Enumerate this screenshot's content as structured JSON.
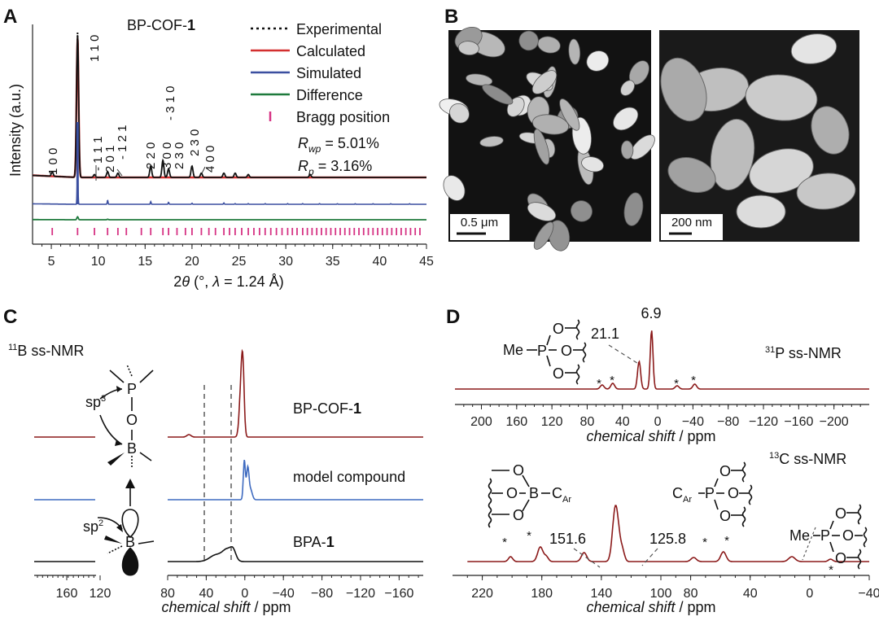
{
  "panels": {
    "a": {
      "letter": "A",
      "title_prefix": "BP-COF-",
      "title_bold": "1",
      "ylabel": "Intensity (a.u.)",
      "xlabel_pre": "2",
      "xlabel_theta": "θ",
      "xlabel_mid": " (°, ",
      "xlabel_lambda": "λ",
      "xlabel_post": " = 1.24 Å)",
      "x_ticks": [
        "5",
        "10",
        "15",
        "20",
        "25",
        "30",
        "35",
        "40",
        "45"
      ],
      "legend": {
        "experimental": "Experimental",
        "calculated": "Calculated",
        "simulated": "Simulated",
        "difference": "Difference",
        "bragg": "Bragg position"
      },
      "rwp_pre": "R",
      "rwp_sub": "wp",
      "rwp_val": " = 5.01%",
      "rp_pre": "R",
      "rp_sub": "p",
      "rp_val": " = 3.16%",
      "reflections": [
        "1 0 0",
        "1 1 0",
        "- 1 1 1",
        "2 0 1",
        "- 1 2 1",
        "2 2 0",
        "3 0 0",
        "- 3 1 0",
        "2 3 0",
        "2 3 0",
        "4 0 0"
      ]
    },
    "b": {
      "letter": "B",
      "scale_left": "0.5 μm",
      "scale_right": "200 nm"
    },
    "c": {
      "letter": "C",
      "nucleus_sup": "11",
      "nucleus_rest": "B ss-NMR",
      "traces": {
        "top_pre": "BP-COF-",
        "top_bold": "1",
        "middle": "model compound",
        "bottom_pre": "BPA-",
        "bottom_bold": "1"
      },
      "sp3_pre": "sp",
      "sp3_sup": "3",
      "sp2_pre": "sp",
      "sp2_sup": "2",
      "atom_P": "P",
      "atom_O": "O",
      "atom_B": "B",
      "x_ticks": [
        "160",
        "120",
        "80",
        "40",
        "0",
        "−40",
        "−80",
        "−120",
        "−160"
      ],
      "xlabel_it": "chemical shift",
      "xlabel_rest": " / ppm"
    },
    "d": {
      "letter": "D",
      "p31_sup": "31",
      "p31_rest": "P ss-NMR",
      "c13_sup": "13",
      "c13_rest": "C ss-NMR",
      "peak_69": "6.9",
      "peak_211": "21.1",
      "peak_1516": "151.6",
      "peak_1258": "125.8",
      "star": "*",
      "me": "Me",
      "car_pre": "C",
      "car_sub": "Ar",
      "p_ticks": [
        "200",
        "160",
        "120",
        "80",
        "40",
        "0",
        "−40",
        "−80",
        "−120",
        "−160",
        "−200"
      ],
      "c_ticks": [
        "220",
        "180",
        "140",
        "100",
        "80",
        "60",
        "40",
        "0",
        "−40"
      ],
      "c_ticks_fixed": [
        "220",
        "180",
        "140",
        "100",
        "80",
        "40",
        "0",
        "−40"
      ],
      "xlabel_it": "chemical shift",
      "xlabel_rest": " / ppm"
    }
  },
  "colors": {
    "experimental": "#111111",
    "calculated": "#d32f2f",
    "simulated": "#3b4fa0",
    "difference": "#1e7a3c",
    "bragg": "#d63384",
    "dark_red": "#8b1a1a",
    "blue": "#3f6bc0",
    "orange": "#f39c12",
    "pink": "#e8319a"
  },
  "chart_data": {
    "type": "line",
    "title": "BP-COF-1",
    "xlabel": "2θ (°, λ = 1.24 Å)",
    "ylabel": "Intensity (a.u.)",
    "xlim": [
      3,
      45
    ],
    "x_ticks": [
      5,
      10,
      15,
      20,
      25,
      30,
      35,
      40,
      45
    ],
    "series": [
      {
        "name": "Experimental",
        "peaks": [
          {
            "x": 5.1,
            "h": 0.03
          },
          {
            "x": 7.8,
            "h": 1.0
          },
          {
            "x": 9.6,
            "h": 0.02
          },
          {
            "x": 11.0,
            "h": 0.04
          },
          {
            "x": 12.1,
            "h": 0.03
          },
          {
            "x": 15.6,
            "h": 0.08
          },
          {
            "x": 16.9,
            "h": 0.12
          },
          {
            "x": 17.5,
            "h": 0.06
          },
          {
            "x": 20.0,
            "h": 0.08
          },
          {
            "x": 21.0,
            "h": 0.03
          },
          {
            "x": 23.4,
            "h": 0.03
          },
          {
            "x": 24.6,
            "h": 0.03
          },
          {
            "x": 26.0,
            "h": 0.02
          },
          {
            "x": 32.6,
            "h": 0.02
          }
        ]
      },
      {
        "name": "Calculated",
        "peaks": [
          {
            "x": 7.8,
            "h": 0.95
          }
        ]
      },
      {
        "name": "Simulated",
        "peaks": [
          {
            "x": 7.8,
            "h": 1.0
          },
          {
            "x": 11.0,
            "h": 0.12
          },
          {
            "x": 15.6,
            "h": 0.08
          },
          {
            "x": 17.5,
            "h": 0.06
          },
          {
            "x": 20.0,
            "h": 0.03
          },
          {
            "x": 23.4,
            "h": 0.04
          },
          {
            "x": 24.6,
            "h": 0.02
          },
          {
            "x": 26.0,
            "h": 0.02
          },
          {
            "x": 27.8,
            "h": 0.02
          },
          {
            "x": 30.2,
            "h": 0.02
          },
          {
            "x": 31.8,
            "h": 0.02
          },
          {
            "x": 33.6,
            "h": 0.02
          },
          {
            "x": 35.5,
            "h": 0.015
          },
          {
            "x": 37.4,
            "h": 0.015
          },
          {
            "x": 39.3,
            "h": 0.015
          },
          {
            "x": 41.2,
            "h": 0.015
          },
          {
            "x": 43.2,
            "h": 0.015
          }
        ]
      },
      {
        "name": "Difference",
        "peaks": [
          {
            "x": 7.8,
            "h": 0.3
          },
          {
            "x": 11.0,
            "h": 0.05
          }
        ]
      },
      {
        "name": "Bragg position",
        "positions": [
          5.1,
          7.8,
          9.6,
          11.0,
          12.1,
          13.0,
          14.6,
          15.6,
          16.9,
          17.5,
          18.4,
          19.3,
          20.0,
          21.0,
          21.8,
          22.5,
          23.4,
          24.0,
          24.6,
          25.3,
          26.0,
          26.6,
          27.2,
          27.8,
          28.4,
          29.0,
          29.6,
          30.2,
          30.7,
          31.2,
          31.8,
          32.3,
          32.8,
          33.3,
          33.8,
          34.3,
          34.8,
          35.3,
          35.8,
          36.3,
          36.8,
          37.3,
          37.8,
          38.3,
          38.8,
          39.3,
          39.8,
          40.3,
          40.8,
          41.3,
          41.8,
          42.3,
          42.8,
          43.3,
          43.8,
          44.3
        ]
      }
    ],
    "annotations": [
      "R_wp = 5.01%",
      "R_p = 3.16%"
    ]
  }
}
